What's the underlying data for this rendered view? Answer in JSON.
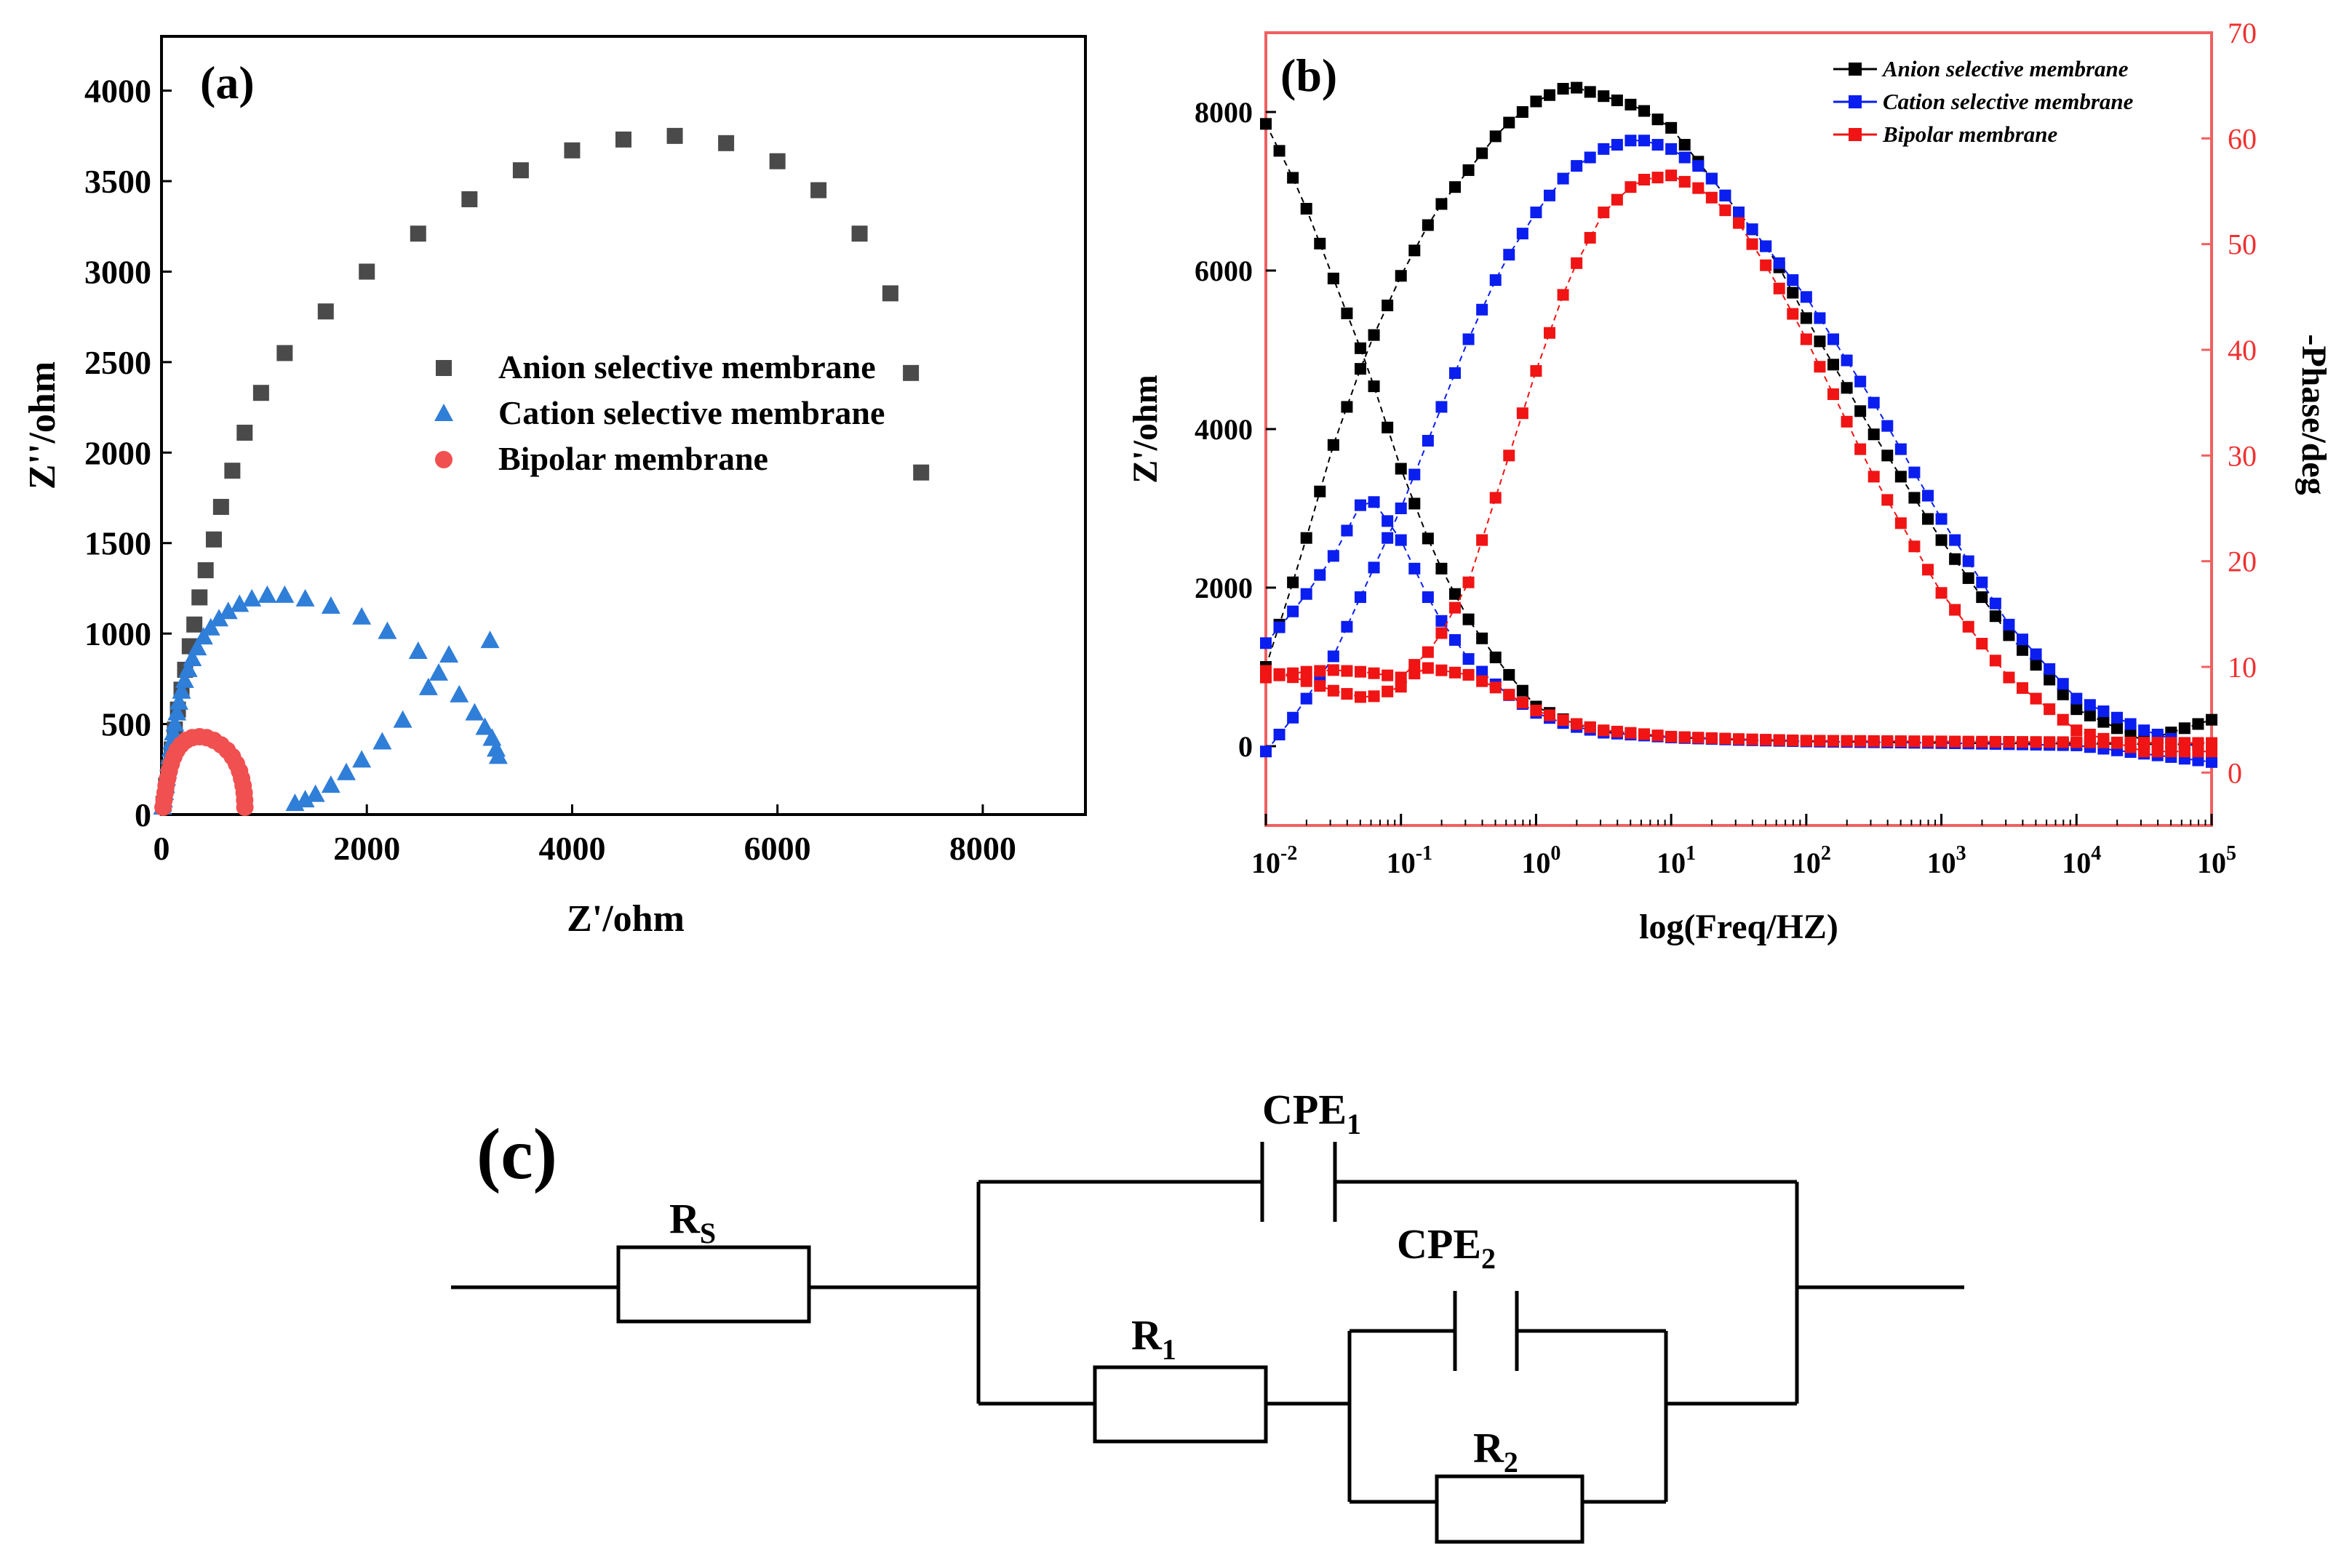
{
  "panel_a": {
    "label": "(a)",
    "chart_data": {
      "type": "scatter",
      "title": "",
      "xlabel": "Z'/ohm",
      "ylabel": "Z''/ohm",
      "xlim": [
        0,
        9000
      ],
      "ylim": [
        0,
        4300
      ],
      "xticks": [
        "0",
        "2000",
        "4000",
        "6000",
        "8000"
      ],
      "xtick_values": [
        0,
        2000,
        4000,
        6000,
        8000
      ],
      "yticks": [
        "0",
        "500",
        "1000",
        "1500",
        "2000",
        "2500",
        "3000",
        "3500",
        "4000"
      ],
      "ytick_values": [
        0,
        500,
        1000,
        1500,
        2000,
        2500,
        3000,
        3500,
        4000
      ],
      "legend_position": "center-right",
      "series": [
        {
          "name": "Anion selective membrane",
          "marker": "square",
          "color": "#4a4a4a",
          "points": [
            [
              20,
              60
            ],
            [
              45,
              160
            ],
            [
              70,
              260
            ],
            [
              100,
              360
            ],
            [
              130,
              470
            ],
            [
              160,
              580
            ],
            [
              195,
              690
            ],
            [
              230,
              800
            ],
            [
              275,
              930
            ],
            [
              320,
              1050
            ],
            [
              370,
              1200
            ],
            [
              430,
              1350
            ],
            [
              510,
              1520
            ],
            [
              580,
              1700
            ],
            [
              690,
              1900
            ],
            [
              810,
              2110
            ],
            [
              970,
              2330
            ],
            [
              1200,
              2550
            ],
            [
              1600,
              2780
            ],
            [
              2000,
              3000
            ],
            [
              2500,
              3210
            ],
            [
              3000,
              3400
            ],
            [
              3500,
              3560
            ],
            [
              4000,
              3670
            ],
            [
              4500,
              3730
            ],
            [
              5000,
              3750
            ],
            [
              5500,
              3710
            ],
            [
              6000,
              3610
            ],
            [
              6400,
              3450
            ],
            [
              6800,
              3210
            ],
            [
              7100,
              2880
            ],
            [
              7300,
              2440
            ],
            [
              7400,
              1890
            ]
          ]
        },
        {
          "name": "Cation selective membrane",
          "marker": "triangle",
          "color": "#2f7ed8",
          "points": [
            [
              10,
              40
            ],
            [
              20,
              80
            ],
            [
              30,
              120
            ],
            [
              40,
              160
            ],
            [
              50,
              200
            ],
            [
              60,
              240
            ],
            [
              70,
              280
            ],
            [
              80,
              320
            ],
            [
              90,
              360
            ],
            [
              100,
              400
            ],
            [
              115,
              450
            ],
            [
              130,
              500
            ],
            [
              150,
              560
            ],
            [
              170,
              620
            ],
            [
              195,
              680
            ],
            [
              225,
              740
            ],
            [
              260,
              800
            ],
            [
              300,
              860
            ],
            [
              350,
              920
            ],
            [
              410,
              980
            ],
            [
              480,
              1030
            ],
            [
              560,
              1080
            ],
            [
              650,
              1120
            ],
            [
              760,
              1160
            ],
            [
              880,
              1190
            ],
            [
              1030,
              1210
            ],
            [
              1200,
              1210
            ],
            [
              1400,
              1190
            ],
            [
              1650,
              1150
            ],
            [
              1950,
              1090
            ],
            [
              2200,
              1010
            ],
            [
              2500,
              900
            ],
            [
              2700,
              780
            ],
            [
              2900,
              660
            ],
            [
              3050,
              560
            ],
            [
              3150,
              480
            ],
            [
              3220,
              420
            ],
            [
              3260,
              360
            ],
            [
              3280,
              320
            ],
            [
              2800,
              880
            ],
            [
              3200,
              960
            ],
            [
              2600,
              700
            ],
            [
              2350,
              520
            ],
            [
              2150,
              400
            ],
            [
              1950,
              300
            ],
            [
              1800,
              230
            ],
            [
              1650,
              160
            ],
            [
              1500,
              110
            ],
            [
              1400,
              80
            ],
            [
              1300,
              60
            ]
          ]
        },
        {
          "name": "Bipolar membrane",
          "marker": "circle",
          "color": "#f15050",
          "points": [
            [
              15,
              40
            ],
            [
              25,
              80
            ],
            [
              35,
              120
            ],
            [
              45,
              160
            ],
            [
              60,
              200
            ],
            [
              75,
              240
            ],
            [
              95,
              280
            ],
            [
              120,
              320
            ],
            [
              150,
              355
            ],
            [
              190,
              385
            ],
            [
              240,
              410
            ],
            [
              300,
              425
            ],
            [
              370,
              430
            ],
            [
              440,
              425
            ],
            [
              510,
              410
            ],
            [
              580,
              385
            ],
            [
              640,
              355
            ],
            [
              690,
              320
            ],
            [
              730,
              280
            ],
            [
              760,
              240
            ],
            [
              780,
              200
            ],
            [
              795,
              160
            ],
            [
              805,
              120
            ],
            [
              810,
              80
            ],
            [
              812,
              40
            ]
          ]
        }
      ]
    }
  },
  "panel_b": {
    "label": "(b)",
    "chart_data": {
      "type": "line",
      "title": "",
      "xlabel": "log(Freq/HZ)",
      "ylabel_left": "Z'/ohm",
      "ylabel_right": "-Phase/deg",
      "xscale": "log",
      "xlim_log10": [
        -2,
        5
      ],
      "ylim_left": [
        -1000,
        9000
      ],
      "ylim_right": [
        -5,
        70
      ],
      "x_tick_labels": [
        {
          "base": "10",
          "exp": "-2",
          "log10": -2
        },
        {
          "base": "10",
          "exp": "-1",
          "log10": -1
        },
        {
          "base": "10",
          "exp": "0",
          "log10": 0
        },
        {
          "base": "10",
          "exp": "1",
          "log10": 1
        },
        {
          "base": "10",
          "exp": "2",
          "log10": 2
        },
        {
          "base": "10",
          "exp": "3",
          "log10": 3
        },
        {
          "base": "10",
          "exp": "4",
          "log10": 4
        },
        {
          "base": "10",
          "exp": "5",
          "log10": 5
        }
      ],
      "left_ticks": [
        "0",
        "2000",
        "4000",
        "6000",
        "8000"
      ],
      "left_tick_values": [
        0,
        2000,
        4000,
        6000,
        8000
      ],
      "right_ticks": [
        "0",
        "10",
        "20",
        "30",
        "40",
        "50",
        "60",
        "70"
      ],
      "right_tick_values": [
        0,
        10,
        20,
        30,
        40,
        50,
        60,
        70
      ],
      "legend_position": "top-right",
      "series": [
        {
          "name": "Anion selective membrane",
          "color": "#000000",
          "kind": "impedance",
          "axis": "left",
          "points": [
            [
              -2,
              7850
            ],
            [
              -1.75,
              7000
            ],
            [
              -1.5,
              5900
            ],
            [
              -1.25,
              4800
            ],
            [
              -1,
              3500
            ],
            [
              -0.75,
              2400
            ],
            [
              -0.5,
              1600
            ],
            [
              -0.25,
              1000
            ],
            [
              0,
              500
            ],
            [
              0.25,
              300
            ],
            [
              0.5,
              180
            ],
            [
              1,
              110
            ],
            [
              1.5,
              80
            ],
            [
              2,
              60
            ],
            [
              3,
              40
            ],
            [
              4,
              30
            ],
            [
              5,
              20
            ]
          ]
        },
        {
          "name": "Anion selective membrane",
          "color": "#000000",
          "kind": "phase",
          "axis": "right",
          "points": [
            [
              -2,
              10
            ],
            [
              -1.75,
              20
            ],
            [
              -1.5,
              31
            ],
            [
              -1.25,
              40
            ],
            [
              -1,
              47
            ],
            [
              -0.75,
              53
            ],
            [
              -0.5,
              57
            ],
            [
              -0.25,
              61
            ],
            [
              0,
              63.5
            ],
            [
              0.25,
              65
            ],
            [
              0.5,
              64
            ],
            [
              0.75,
              63
            ],
            [
              1,
              61
            ],
            [
              1.25,
              57
            ],
            [
              1.5,
              53
            ],
            [
              1.75,
              49
            ],
            [
              2,
              43
            ],
            [
              2.5,
              32
            ],
            [
              3,
              22
            ],
            [
              3.5,
              13
            ],
            [
              4,
              6
            ],
            [
              4.5,
              3
            ],
            [
              5,
              5
            ]
          ]
        },
        {
          "name": "Cation selective membrane",
          "color": "#0a1ef0",
          "kind": "impedance",
          "axis": "left",
          "points": [
            [
              -2,
              1300
            ],
            [
              -1.75,
              1800
            ],
            [
              -1.5,
              2400
            ],
            [
              -1.25,
              3200
            ],
            [
              -1,
              2600
            ],
            [
              -0.75,
              1700
            ],
            [
              -0.5,
              1100
            ],
            [
              -0.25,
              700
            ],
            [
              0,
              420
            ],
            [
              0.25,
              260
            ],
            [
              0.5,
              170
            ],
            [
              1,
              110
            ],
            [
              1.5,
              80
            ],
            [
              2,
              60
            ],
            [
              3,
              40
            ],
            [
              4,
              10
            ],
            [
              5,
              -200
            ]
          ]
        },
        {
          "name": "Cation selective membrane",
          "color": "#0a1ef0",
          "kind": "phase",
          "axis": "right",
          "points": [
            [
              -2,
              2
            ],
            [
              -1.75,
              6
            ],
            [
              -1.5,
              11
            ],
            [
              -1.25,
              18
            ],
            [
              -1,
              25
            ],
            [
              -0.75,
              33
            ],
            [
              -0.5,
              41
            ],
            [
              -0.25,
              48
            ],
            [
              0,
              53
            ],
            [
              0.25,
              57
            ],
            [
              0.5,
              59
            ],
            [
              0.75,
              60
            ],
            [
              1,
              59
            ],
            [
              1.25,
              57
            ],
            [
              1.5,
              53
            ],
            [
              1.75,
              49
            ],
            [
              2,
              45
            ],
            [
              2.5,
              35
            ],
            [
              3,
              24
            ],
            [
              3.5,
              14
            ],
            [
              4,
              7
            ],
            [
              4.5,
              4
            ],
            [
              5,
              2
            ]
          ]
        },
        {
          "name": "Bipolar membrane",
          "color": "#f01414",
          "kind": "impedance",
          "axis": "left",
          "points": [
            [
              -2,
              950
            ],
            [
              -1.75,
              850
            ],
            [
              -1.5,
              700
            ],
            [
              -1.25,
              600
            ],
            [
              -1,
              750
            ],
            [
              -0.85,
              1000
            ],
            [
              -0.5,
              900
            ],
            [
              -0.25,
              700
            ],
            [
              0,
              450
            ],
            [
              0.25,
              300
            ],
            [
              0.5,
              200
            ],
            [
              1,
              120
            ],
            [
              1.5,
              90
            ],
            [
              2,
              70
            ],
            [
              3,
              60
            ],
            [
              4,
              50
            ],
            [
              5,
              40
            ]
          ]
        },
        {
          "name": "Bipolar membrane",
          "color": "#f01414",
          "kind": "phase",
          "axis": "right",
          "points": [
            [
              -2,
              9
            ],
            [
              -1.75,
              9.5
            ],
            [
              -1.5,
              9.7
            ],
            [
              -1.25,
              9.5
            ],
            [
              -1,
              9
            ],
            [
              -0.75,
              12
            ],
            [
              -0.5,
              18
            ],
            [
              -0.25,
              28
            ],
            [
              0,
              38
            ],
            [
              0.25,
              47
            ],
            [
              0.5,
              53
            ],
            [
              0.75,
              56
            ],
            [
              1,
              56.5
            ],
            [
              1.25,
              55
            ],
            [
              1.5,
              52
            ],
            [
              1.75,
              47
            ],
            [
              2,
              41
            ],
            [
              2.5,
              28
            ],
            [
              3,
              17
            ],
            [
              3.5,
              9
            ],
            [
              4,
              4
            ],
            [
              4.5,
              2
            ],
            [
              5,
              2
            ]
          ]
        }
      ]
    }
  },
  "panel_c": {
    "label": "(c)",
    "components": {
      "rs": {
        "main": "R",
        "sub": "S"
      },
      "cpe1": {
        "main": "CPE",
        "sub": "1"
      },
      "r1": {
        "main": "R",
        "sub": "1"
      },
      "cpe2": {
        "main": "CPE",
        "sub": "2"
      },
      "r2": {
        "main": "R",
        "sub": "2"
      }
    }
  }
}
